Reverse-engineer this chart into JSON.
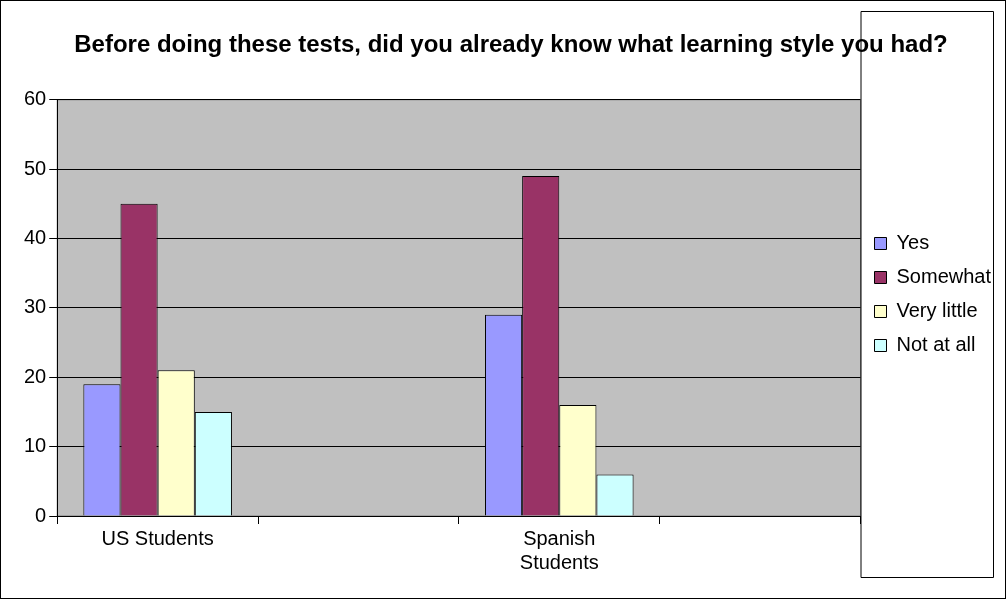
{
  "chart_data": {
    "type": "bar",
    "title": "Before doing these tests, did you already know what learning style you had?",
    "categories": [
      "US Students",
      null,
      "Spanish Students",
      null
    ],
    "series": [
      {
        "name": "Yes",
        "color": "#9999ff",
        "values": [
          19,
          null,
          29,
          null
        ]
      },
      {
        "name": "Somewhat",
        "color": "#993366",
        "values": [
          45,
          null,
          49,
          null
        ]
      },
      {
        "name": "Very little",
        "color": "#ffffcc",
        "values": [
          21,
          null,
          16,
          null
        ]
      },
      {
        "name": "Not at all",
        "color": "#ccffff",
        "values": [
          15,
          null,
          6,
          null
        ]
      }
    ],
    "ylim": [
      0,
      60
    ],
    "yticks": [
      0,
      10,
      20,
      30,
      40,
      50,
      60
    ],
    "grid": "y",
    "legend": "right"
  }
}
